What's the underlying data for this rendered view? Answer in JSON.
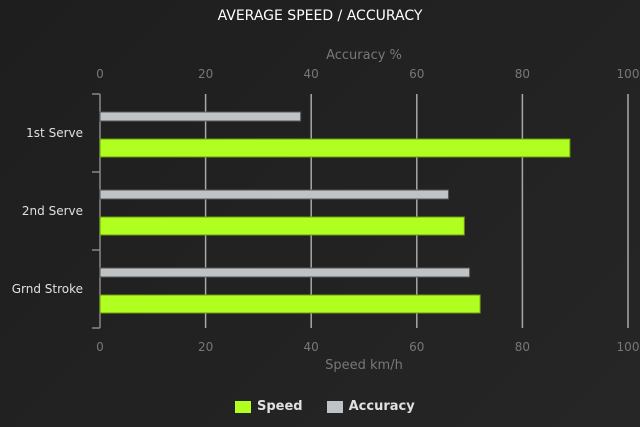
{
  "chart_data": {
    "type": "bar",
    "orientation": "horizontal",
    "title": "AVERAGE SPEED / ACCURACY",
    "categories": [
      "1st Serve",
      "2nd Serve",
      "Grnd Stroke"
    ],
    "series": [
      {
        "name": "Accuracy",
        "values": [
          38,
          66,
          70
        ],
        "color": "#bfc3c6",
        "axis": "top"
      },
      {
        "name": "Speed",
        "values": [
          89,
          69,
          72
        ],
        "color": "#b0ff20",
        "axis": "bottom"
      }
    ],
    "top_axis": {
      "label": "Accuracy %",
      "range": [
        0,
        100
      ],
      "ticks": [
        "0",
        "20",
        "40",
        "60",
        "80",
        "100"
      ]
    },
    "bottom_axis": {
      "label": "Speed km/h",
      "range": [
        0,
        100
      ],
      "ticks": [
        "0",
        "20",
        "40",
        "60",
        "80",
        "100"
      ]
    },
    "grid": true,
    "legend": {
      "position": "bottom",
      "items": [
        "Speed",
        "Accuracy"
      ]
    }
  }
}
